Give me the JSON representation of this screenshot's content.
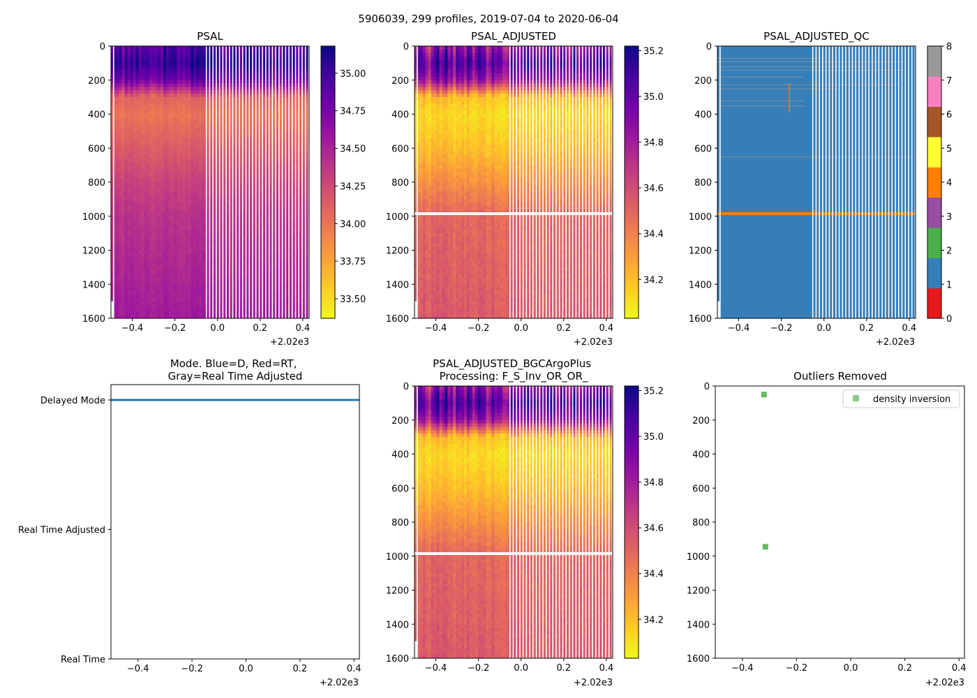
{
  "figure": {
    "suptitle": "5906039, 299 profiles, 2019-07-04 to 2020-06-04"
  },
  "colors": {
    "plasma": [
      "#0d0887",
      "#46039f",
      "#7201a8",
      "#9c179e",
      "#bd3786",
      "#d8576b",
      "#ed7953",
      "#fb9f3a",
      "#fdca26",
      "#f0f921"
    ],
    "qc": [
      "#e41a1c",
      "#377eb8",
      "#4daf4a",
      "#984ea3",
      "#ff7f00",
      "#ffff33",
      "#a65628",
      "#f781bf",
      "#999999"
    ],
    "dm_line": "#1f77b4",
    "outlier_marker": "#4daf4a"
  },
  "chart_data": [
    {
      "id": "psal",
      "type": "heatmap",
      "title": "PSAL",
      "x_offset_label": "+2.02e3",
      "xlim": [
        -0.5,
        0.43
      ],
      "xticks": [
        -0.4,
        -0.2,
        0.0,
        0.2,
        0.4
      ],
      "xtick_labels": [
        "−0.4",
        "−0.2",
        "0.0",
        "0.2",
        "0.4"
      ],
      "ylim": [
        1600,
        0
      ],
      "yticks": [
        0,
        200,
        400,
        600,
        800,
        1000,
        1200,
        1400,
        1600
      ],
      "colorbar": {
        "range": [
          33.37,
          35.18
        ],
        "ticks": [
          33.5,
          33.75,
          34.0,
          34.25,
          34.5,
          34.75,
          35.0
        ],
        "tick_labels": [
          "33.50",
          "33.75",
          "34.00",
          "34.25",
          "34.50",
          "34.75",
          "35.00"
        ]
      },
      "profile": [
        {
          "depth": 0,
          "value": 34.9
        },
        {
          "depth": 100,
          "value": 35.05
        },
        {
          "depth": 200,
          "value": 34.8
        },
        {
          "depth": 300,
          "value": 34.1
        },
        {
          "depth": 400,
          "value": 34.0
        },
        {
          "depth": 600,
          "value": 34.15
        },
        {
          "depth": 800,
          "value": 34.3
        },
        {
          "depth": 1000,
          "value": 34.4
        },
        {
          "depth": 1600,
          "value": 34.55
        }
      ]
    },
    {
      "id": "psal_adj",
      "type": "heatmap",
      "title": "PSAL_ADJUSTED",
      "x_offset_label": "+2.02e3",
      "xlim": [
        -0.5,
        0.43
      ],
      "xticks": [
        -0.4,
        -0.2,
        0.0,
        0.2,
        0.4
      ],
      "xtick_labels": [
        "−0.4",
        "−0.2",
        "0.0",
        "0.2",
        "0.4"
      ],
      "ylim": [
        1600,
        0
      ],
      "yticks": [
        0,
        200,
        400,
        600,
        800,
        1000,
        1200,
        1400,
        1600
      ],
      "colorbar": {
        "range": [
          34.03,
          35.22
        ],
        "ticks": [
          34.2,
          34.4,
          34.6,
          34.8,
          35.0,
          35.2
        ],
        "tick_labels": [
          "34.2",
          "34.4",
          "34.6",
          "34.8",
          "35.0",
          "35.2"
        ]
      },
      "gap_depth": 985,
      "profile": [
        {
          "depth": 0,
          "value": 34.85
        },
        {
          "depth": 100,
          "value": 35.05
        },
        {
          "depth": 200,
          "value": 34.85
        },
        {
          "depth": 300,
          "value": 34.2
        },
        {
          "depth": 400,
          "value": 34.12
        },
        {
          "depth": 600,
          "value": 34.2
        },
        {
          "depth": 800,
          "value": 34.35
        },
        {
          "depth": 1000,
          "value": 34.5
        },
        {
          "depth": 1600,
          "value": 34.55
        }
      ]
    },
    {
      "id": "psal_adj_qc",
      "type": "heatmap",
      "title": "PSAL_ADJUSTED_QC",
      "x_offset_label": "+2.02e3",
      "xlim": [
        -0.5,
        0.43
      ],
      "xticks": [
        -0.4,
        -0.2,
        0.0,
        0.2,
        0.4
      ],
      "xtick_labels": [
        "−0.4",
        "−0.2",
        "0.0",
        "0.2",
        "0.4"
      ],
      "ylim": [
        1600,
        0
      ],
      "yticks": [
        0,
        200,
        400,
        600,
        800,
        1000,
        1200,
        1400,
        1600
      ],
      "colorbar": {
        "range": [
          0,
          8
        ],
        "ticks": [
          0,
          1,
          2,
          3,
          4,
          5,
          6,
          7,
          8
        ],
        "tick_labels": [
          "0",
          "1",
          "2",
          "3",
          "4",
          "5",
          "6",
          "7",
          "8"
        ]
      },
      "dominant_flag": 1,
      "flag4_depth": 985
    },
    {
      "id": "mode",
      "type": "line",
      "title": "Mode. Blue=D, Red=RT,\nGray=Real Time Adjusted",
      "x_offset_label": "+2.02e3",
      "xlim": [
        -0.5,
        0.42
      ],
      "xticks": [
        -0.4,
        -0.2,
        0.0,
        0.2,
        0.4
      ],
      "xtick_labels": [
        "−0.4",
        "−0.2",
        "0.0",
        "0.2",
        "0.4"
      ],
      "yticks": [
        0,
        1,
        2
      ],
      "ytick_labels": [
        "Delayed Mode",
        "Real Time Adjusted",
        "Real Time"
      ],
      "series": [
        {
          "name": "Delayed Mode",
          "level": 0,
          "x_range": [
            -0.5,
            0.42
          ]
        }
      ]
    },
    {
      "id": "bgc",
      "type": "heatmap",
      "title": "PSAL_ADJUSTED_BGCArgoPlus\nProcessing: F_S_Inv_OR_OR_",
      "x_offset_label": "+2.02e3",
      "xlim": [
        -0.5,
        0.43
      ],
      "xticks": [
        -0.4,
        -0.2,
        0.0,
        0.2,
        0.4
      ],
      "xtick_labels": [
        "−0.4",
        "−0.2",
        "0.0",
        "0.2",
        "0.4"
      ],
      "ylim": [
        1600,
        0
      ],
      "yticks": [
        0,
        200,
        400,
        600,
        800,
        1000,
        1200,
        1400,
        1600
      ],
      "colorbar": {
        "range": [
          34.03,
          35.22
        ],
        "ticks": [
          34.2,
          34.4,
          34.6,
          34.8,
          35.0,
          35.2
        ],
        "tick_labels": [
          "34.2",
          "34.4",
          "34.6",
          "34.8",
          "35.0",
          "35.2"
        ]
      },
      "gap_depth": 985,
      "profile": [
        {
          "depth": 0,
          "value": 34.85
        },
        {
          "depth": 100,
          "value": 35.05
        },
        {
          "depth": 200,
          "value": 34.85
        },
        {
          "depth": 300,
          "value": 34.2
        },
        {
          "depth": 400,
          "value": 34.12
        },
        {
          "depth": 600,
          "value": 34.2
        },
        {
          "depth": 800,
          "value": 34.35
        },
        {
          "depth": 1000,
          "value": 34.5
        },
        {
          "depth": 1600,
          "value": 34.55
        }
      ]
    },
    {
      "id": "outliers",
      "type": "scatter",
      "title": "Outliers Removed",
      "x_offset_label": "+2.02e3",
      "xlim": [
        -0.5,
        0.42
      ],
      "xticks": [
        -0.4,
        -0.2,
        0.0,
        0.2,
        0.4
      ],
      "xtick_labels": [
        "−0.4",
        "−0.2",
        "0.0",
        "0.2",
        "0.4"
      ],
      "ylim": [
        1600,
        0
      ],
      "yticks": [
        0,
        200,
        400,
        600,
        800,
        1000,
        1200,
        1400,
        1600
      ],
      "legend": {
        "label": "density inversion",
        "location": "upper-right"
      },
      "points": [
        {
          "x": -0.32,
          "y": 50
        },
        {
          "x": -0.315,
          "y": 945
        }
      ]
    }
  ]
}
